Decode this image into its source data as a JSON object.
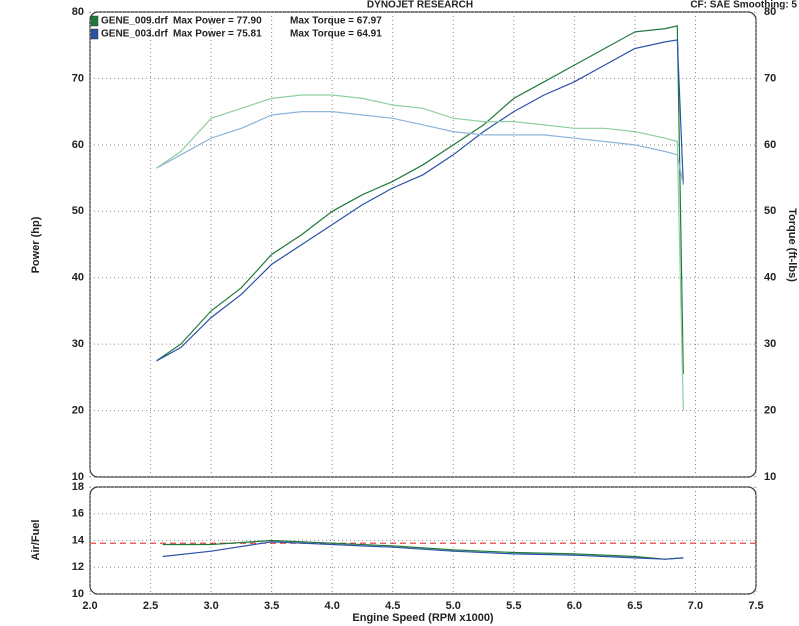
{
  "chart_data": [
    {
      "type": "line",
      "title": "DYNOJET RESEARCH",
      "note": "CF: SAE  Smoothing: 5",
      "ylabel": "Power (hp)",
      "y2label": "Torque (ft-lbs)",
      "x": [
        2.55,
        2.75,
        3.0,
        3.25,
        3.5,
        3.75,
        4.0,
        4.25,
        4.5,
        4.75,
        5.0,
        5.25,
        5.5,
        5.75,
        6.0,
        6.25,
        6.5,
        6.75,
        6.85,
        6.9
      ],
      "series": [
        {
          "name": "GENE_009.drf",
          "label": "Max Power = 77.90",
          "color": "#1f7a3a",
          "values": [
            27.5,
            30,
            35,
            38.5,
            43.5,
            46.5,
            50,
            52.5,
            54.5,
            57,
            60,
            63,
            67,
            69.5,
            72,
            74.5,
            77,
            77.5,
            77.9,
            25.5
          ]
        },
        {
          "name": "GENE_003.drf",
          "label": "Max Power = 75.81",
          "color": "#2a52a8",
          "values": [
            27.5,
            29.5,
            34,
            37.5,
            42,
            45,
            48,
            51,
            53.5,
            55.5,
            58.5,
            62,
            65,
            67.5,
            69.5,
            72,
            74.5,
            75.5,
            75.8,
            54
          ]
        },
        {
          "label": "Max Torque = 67.97",
          "color": "#8fcf9f",
          "axis": "y2",
          "values": [
            56.5,
            59,
            64,
            65.5,
            67,
            67.5,
            67.5,
            67,
            66,
            65.5,
            64,
            63.5,
            63.5,
            63,
            62.5,
            62.5,
            62,
            61,
            60.5,
            20
          ]
        },
        {
          "label": "Max Torque = 64.91",
          "color": "#8fb4d9",
          "axis": "y2",
          "values": [
            56.5,
            58.5,
            61,
            62.5,
            64.5,
            65,
            65,
            64.5,
            64,
            63,
            62,
            61.5,
            61.5,
            61.5,
            61,
            60.5,
            60,
            59,
            58.5,
            54
          ]
        }
      ],
      "xlim": [
        2,
        7.5
      ],
      "xticks": [
        2,
        2.5,
        3,
        3.5,
        4,
        4.5,
        5,
        5.5,
        6,
        6.5,
        7,
        7.5
      ],
      "ylim": [
        10,
        80
      ],
      "yticks": [
        10,
        20,
        30,
        40,
        50,
        60,
        70,
        80
      ],
      "y2lim": [
        10,
        80
      ],
      "y2ticks": [
        10,
        20,
        30,
        40,
        50,
        60,
        70,
        80
      ],
      "grid": true
    },
    {
      "type": "line",
      "ylabel": "Air/Fuel",
      "xlabel": "Engine Speed (RPM x1000)",
      "x": [
        2.6,
        3.0,
        3.5,
        4.0,
        4.5,
        5.0,
        5.5,
        6.0,
        6.5,
        6.75,
        6.9
      ],
      "series": [
        {
          "color": "#1f7a3a",
          "values": [
            13.7,
            13.7,
            14.0,
            13.8,
            13.6,
            13.3,
            13.1,
            13.0,
            12.8,
            12.6,
            12.7
          ]
        },
        {
          "color": "#2a52a8",
          "values": [
            12.8,
            13.2,
            13.9,
            13.7,
            13.5,
            13.2,
            13.0,
            12.9,
            12.7,
            12.6,
            12.7
          ]
        }
      ],
      "reference_line": 13.8,
      "reference_color": "#e03030",
      "xlim": [
        2,
        7.5
      ],
      "xticks": [
        {
          "value": 2,
          "label": "2.0"
        },
        {
          "value": 2.5,
          "label": "2.5"
        },
        {
          "value": 3,
          "label": "3.0"
        },
        {
          "value": 3.5,
          "label": "3.5"
        },
        {
          "value": 4,
          "label": "4.0"
        },
        {
          "value": 4.5,
          "label": "4.5"
        },
        {
          "value": 5,
          "label": "5.0"
        },
        {
          "value": 5.5,
          "label": "5.5"
        },
        {
          "value": 6,
          "label": "6.0"
        },
        {
          "value": 6.5,
          "label": "6.5"
        },
        {
          "value": 7,
          "label": "7.0"
        },
        {
          "value": 7.5,
          "label": "7.5"
        }
      ],
      "ylim": [
        10,
        18
      ],
      "yticks": [
        10,
        12,
        14,
        16,
        18
      ],
      "grid": true
    }
  ]
}
